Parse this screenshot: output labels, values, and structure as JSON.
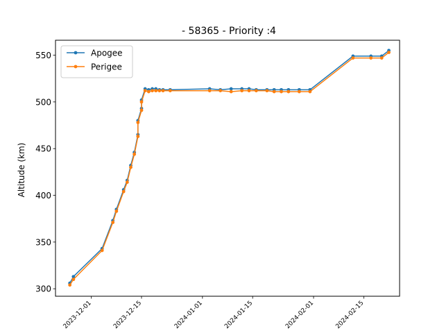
{
  "chart_data": {
    "type": "line",
    "title": "- 58365 - Priority :4",
    "xlabel": "",
    "ylabel": "Altitude (km)",
    "x_type": "date",
    "xlim": [
      "2023-11-21",
      "2024-02-25"
    ],
    "ylim": [
      292,
      566
    ],
    "x_ticks": [
      "2023-12-01",
      "2023-12-15",
      "2024-01-01",
      "2024-01-15",
      "2024-02-01",
      "2024-02-15"
    ],
    "x_tick_labels": [
      "2023-12-01",
      "2023-12-15",
      "2024-01-01",
      "2024-01-15",
      "2024-02-01",
      "2024-02-15"
    ],
    "y_ticks": [
      300,
      350,
      400,
      450,
      500,
      550
    ],
    "grid": false,
    "legend": {
      "position": "top-left",
      "entries": [
        "Apogee",
        "Perigee"
      ]
    },
    "x": [
      "2023-11-25",
      "2023-11-26",
      "2023-12-04",
      "2023-12-07",
      "2023-12-08",
      "2023-12-10",
      "2023-12-11",
      "2023-12-12",
      "2023-12-13",
      "2023-12-14",
      "2023-12-14",
      "2023-12-15",
      "2023-12-15",
      "2023-12-16",
      "2023-12-17",
      "2023-12-18",
      "2023-12-19",
      "2023-12-20",
      "2023-12-21",
      "2023-12-23",
      "2024-01-03",
      "2024-01-06",
      "2024-01-09",
      "2024-01-12",
      "2024-01-14",
      "2024-01-16",
      "2024-01-19",
      "2024-01-21",
      "2024-01-23",
      "2024-01-25",
      "2024-01-28",
      "2024-01-31",
      "2024-02-12",
      "2024-02-17",
      "2024-02-20",
      "2024-02-22"
    ],
    "series": [
      {
        "name": "Apogee",
        "color": "#1f77b4",
        "values": [
          306,
          313,
          343,
          373,
          385,
          406,
          416,
          432,
          446,
          465,
          480,
          493,
          502,
          514,
          513,
          514,
          514,
          513,
          513,
          513,
          514,
          513,
          514,
          514,
          514,
          513,
          513,
          513,
          513,
          513,
          513,
          513,
          549,
          549,
          549,
          555
        ]
      },
      {
        "name": "Perigee",
        "color": "#ff7f0e",
        "values": [
          304,
          310,
          341,
          371,
          383,
          404,
          414,
          430,
          444,
          463,
          478,
          491,
          500,
          512,
          511,
          512,
          512,
          512,
          512,
          512,
          512,
          512,
          511,
          512,
          512,
          512,
          512,
          511,
          511,
          511,
          511,
          511,
          547,
          547,
          547,
          553
        ]
      }
    ]
  }
}
